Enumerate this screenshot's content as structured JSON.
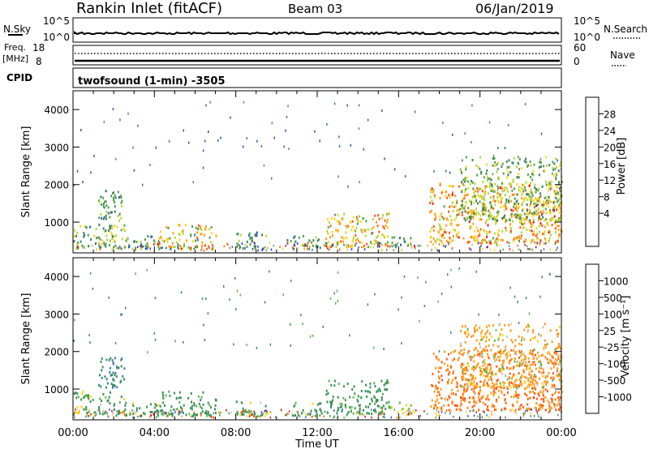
{
  "header": {
    "station": "Rankin Inlet (fitACF)",
    "beam": "Beam 03",
    "date": "06/Jan/2019"
  },
  "status_panels": {
    "nsky_label": "N.Sky",
    "nsearch_label": "N.Search",
    "freq_label": "Freq.",
    "freq_unit": "[MHz]",
    "cpid_label": "CPID",
    "nave_label": "Nave",
    "nsky_ticks": [
      "10^5",
      "10^0"
    ],
    "nsearch_ticks": [
      "10^5",
      "10^0"
    ],
    "freq_ticks": [
      "18",
      "8"
    ],
    "nave_ticks": [
      "60",
      "0"
    ],
    "cpid_text": "twofsound (1-min) -3505"
  },
  "chart_data": [
    {
      "type": "heatmap",
      "name": "power",
      "ylabel": "Slant Range [km]",
      "y_ticks": [
        "4000",
        "3000",
        "2000",
        "1000"
      ],
      "ylim": [
        180,
        4500
      ],
      "xlim": [
        0,
        24
      ],
      "colorbar": {
        "label": "Power [dB]",
        "ticks": [
          "28",
          "24",
          "20",
          "16",
          "12",
          "8",
          "4"
        ],
        "colors": [
          "#1a1aff",
          "#2b5fb0",
          "#3f7f5f",
          "#4fa04f",
          "#b7d434",
          "#ffd21a",
          "#ff9a1a",
          "#ff5a10",
          "#e81010"
        ]
      },
      "echo_regions": [
        {
          "t": [
            0.0,
            2.6
          ],
          "r": [
            250,
            900
          ],
          "level": [
            7,
            20
          ]
        },
        {
          "t": [
            1.2,
            2.5
          ],
          "r": [
            1000,
            1800
          ],
          "level": [
            6,
            16
          ]
        },
        {
          "t": [
            2.6,
            4.2
          ],
          "r": [
            250,
            600
          ],
          "level": [
            5,
            16
          ]
        },
        {
          "t": [
            4.2,
            7.0
          ],
          "r": [
            250,
            900
          ],
          "level": [
            10,
            28
          ]
        },
        {
          "t": [
            8.0,
            9.5
          ],
          "r": [
            250,
            700
          ],
          "level": [
            6,
            16
          ]
        },
        {
          "t": [
            10.5,
            12.2
          ],
          "r": [
            250,
            600
          ],
          "level": [
            5,
            16
          ]
        },
        {
          "t": [
            12.4,
            15.5
          ],
          "r": [
            300,
            1200
          ],
          "level": [
            12,
            28
          ]
        },
        {
          "t": [
            15.5,
            16.6
          ],
          "r": [
            300,
            600
          ],
          "level": [
            5,
            14
          ]
        },
        {
          "t": [
            17.5,
            24.0
          ],
          "r": [
            400,
            2000
          ],
          "level": [
            14,
            30
          ]
        },
        {
          "t": [
            19.0,
            24.0
          ],
          "r": [
            1000,
            2700
          ],
          "level": [
            8,
            20
          ]
        }
      ]
    },
    {
      "type": "heatmap",
      "name": "velocity",
      "ylabel": "Slant Range [km]",
      "y_ticks": [
        "4000",
        "3000",
        "2000",
        "1000"
      ],
      "ylim": [
        180,
        4500
      ],
      "xlim": [
        0,
        24
      ],
      "x_ticks": [
        "00:00",
        "04:00",
        "08:00",
        "12:00",
        "16:00",
        "20:00",
        "00:00"
      ],
      "xlabel": "Time UT",
      "colorbar": {
        "label": "Velocity [m s⁻¹]",
        "ticks": [
          "1000",
          "500",
          "100",
          "25",
          "-25",
          "-100",
          "-500",
          "-1000"
        ],
        "colors": [
          "#2b4fd0",
          "#3f7f9f",
          "#3c8f5a",
          "#5ab84a",
          "#c8c8c8",
          "#ffd21a",
          "#ff9a1a",
          "#ff5a10",
          "#e81010"
        ]
      },
      "echo_regions": [
        {
          "t": [
            0.0,
            2.6
          ],
          "r": [
            250,
            900
          ],
          "v": [
            -100,
            500
          ]
        },
        {
          "t": [
            1.2,
            2.5
          ],
          "r": [
            1000,
            1800
          ],
          "v": [
            100,
            1000
          ]
        },
        {
          "t": [
            2.6,
            4.2
          ],
          "r": [
            250,
            600
          ],
          "v": [
            -100,
            500
          ]
        },
        {
          "t": [
            4.2,
            7.0
          ],
          "r": [
            250,
            900
          ],
          "v": [
            25,
            500
          ]
        },
        {
          "t": [
            8.0,
            9.5
          ],
          "r": [
            250,
            700
          ],
          "v": [
            -100,
            500
          ]
        },
        {
          "t": [
            10.5,
            12.2
          ],
          "r": [
            250,
            600
          ],
          "v": [
            -100,
            500
          ]
        },
        {
          "t": [
            12.4,
            15.5
          ],
          "r": [
            300,
            1200
          ],
          "v": [
            25,
            500
          ]
        },
        {
          "t": [
            15.5,
            16.6
          ],
          "r": [
            300,
            600
          ],
          "v": [
            -100,
            100
          ]
        },
        {
          "t": [
            17.5,
            24.0
          ],
          "r": [
            400,
            2000
          ],
          "v": [
            -1000,
            -100
          ]
        },
        {
          "t": [
            19.0,
            24.0
          ],
          "r": [
            1000,
            2700
          ],
          "v": [
            -500,
            100
          ]
        }
      ]
    }
  ]
}
